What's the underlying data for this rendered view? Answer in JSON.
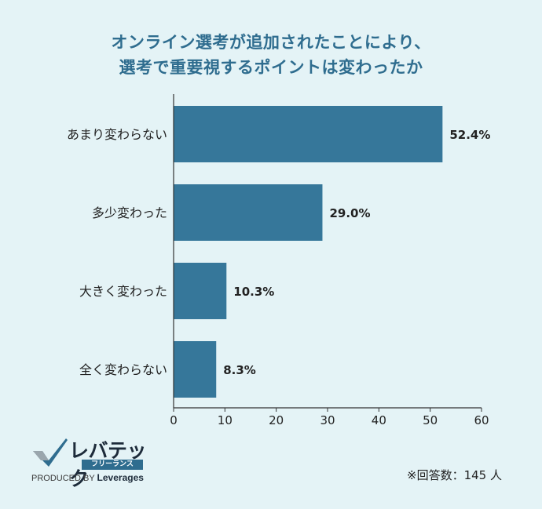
{
  "title": {
    "line1": "オンライン選考が追加されたことにより、",
    "line2": "選考で重要視するポイントは変わったか"
  },
  "chart_data": {
    "type": "bar",
    "orientation": "horizontal",
    "categories": [
      "あまり変わらない",
      "多少変わった",
      "大きく変わった",
      "全く変わらない"
    ],
    "values": [
      52.4,
      29.0,
      10.3,
      8.3
    ],
    "value_labels": [
      "52.4%",
      "29.0%",
      "10.3%",
      "8.3%"
    ],
    "xlim": [
      0,
      60
    ],
    "xticks": [
      0,
      10,
      20,
      30,
      40,
      50,
      60
    ],
    "grid": false,
    "bar_color": "#36779a"
  },
  "logo": {
    "name": "レバテック",
    "sub": "フリーランス",
    "produced_by": "PRODUCED BY",
    "brand": "Leverages"
  },
  "note": "※回答数：145 人"
}
